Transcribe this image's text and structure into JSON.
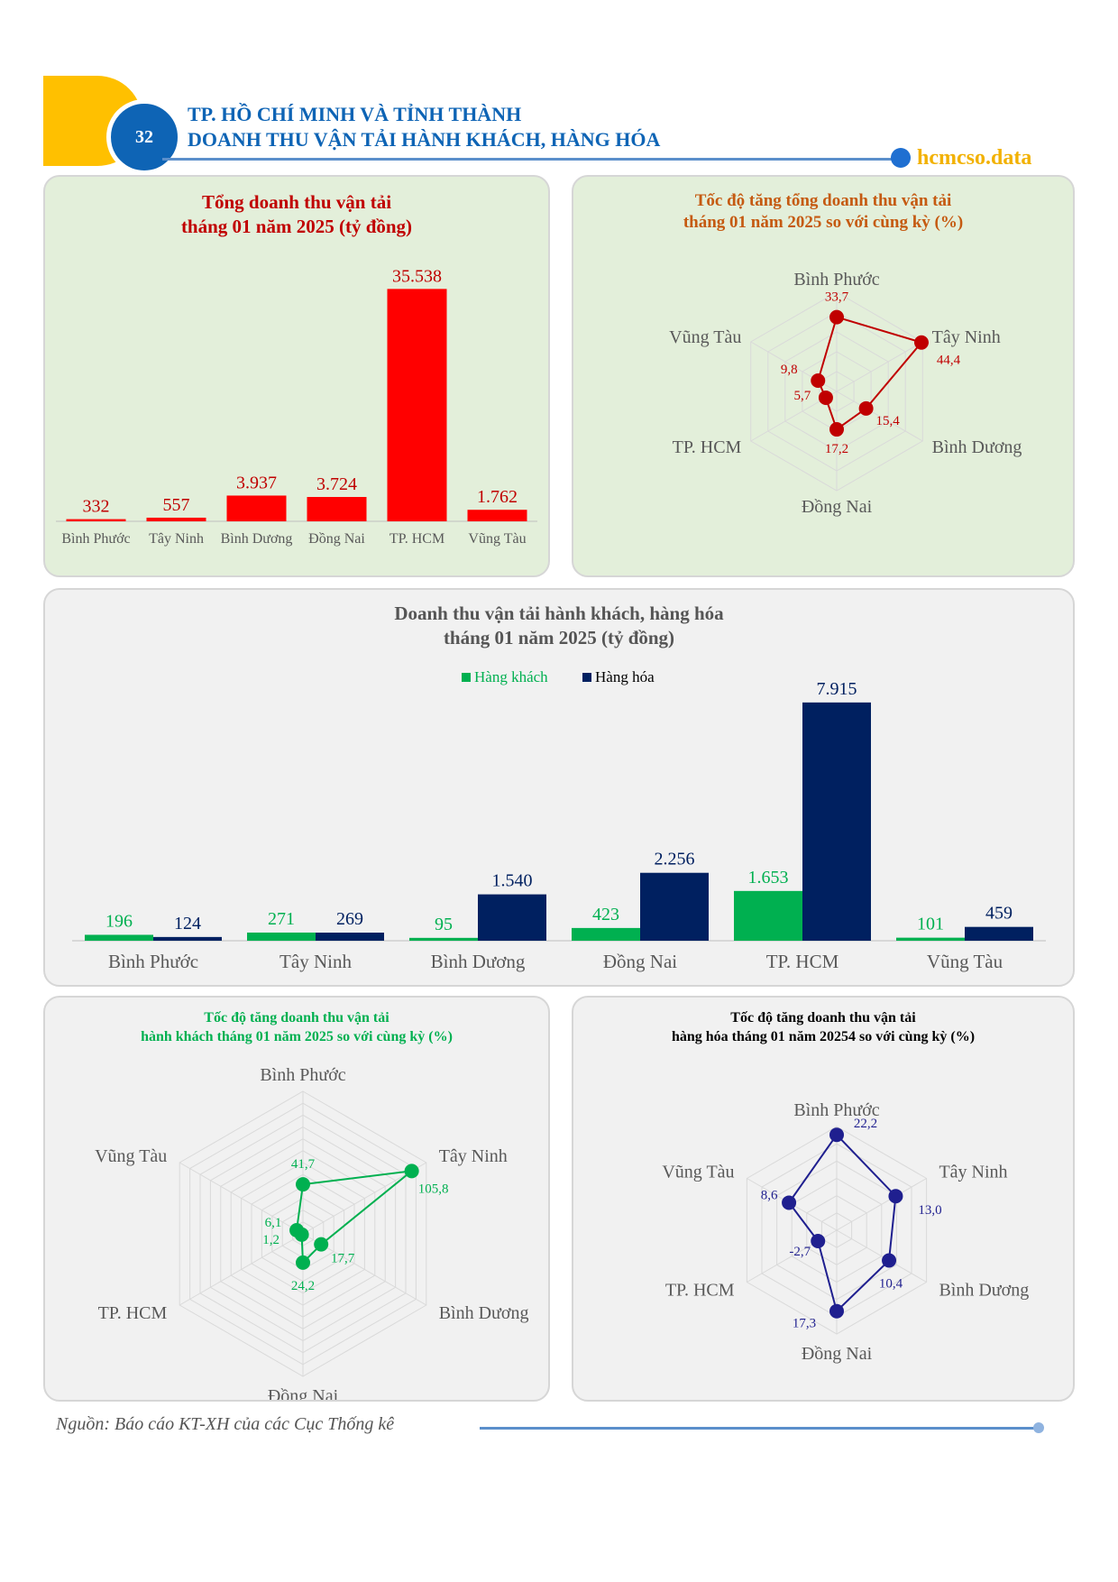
{
  "header": {
    "page_number": "32",
    "title_line1": "TP. HỒ CHÍ MINH VÀ TỈNH THÀNH",
    "title_line2": "DOANH THU VẬN TẢI HÀNH KHÁCH, HÀNG HÓA",
    "brand": "hcmcso.data"
  },
  "colors": {
    "red": "#FF0000",
    "dark_red": "#C00000",
    "green": "#00B050",
    "navy": "#002060",
    "blue_navy": "#1F1F8F",
    "header_blue": "#0E64B5",
    "yellow": "#FFC000"
  },
  "chart_data": [
    {
      "type": "bar",
      "title_line1": "Tổng doanh thu vận tải",
      "title_line2": "tháng 01 năm 2025 (tỷ đồng)",
      "categories": [
        "Bình Phước",
        "Tây Ninh",
        "Bình Dương",
        "Đồng Nai",
        "TP. HCM",
        "Vũng Tàu"
      ],
      "values": [
        332,
        557,
        3937,
        3724,
        35538,
        1762
      ],
      "value_labels": [
        "332",
        "557",
        "3.937",
        "3.724",
        "35.538",
        "1.762"
      ],
      "ylim": [
        0,
        40000
      ],
      "grid": false
    },
    {
      "type": "radar",
      "title_line1": "Tốc độ tăng tổng doanh thu vận tải",
      "title_line2": "tháng 01 năm 2025 so với cùng kỳ  (%)",
      "categories": [
        "Bình Phước",
        "Tây Ninh",
        "Bình Dương",
        "Đồng Nai",
        "TP. HCM",
        "Vũng Tàu"
      ],
      "values": [
        33.7,
        44.4,
        15.4,
        17.2,
        5.7,
        9.8
      ],
      "value_labels": [
        "33,7",
        "44,4",
        "15,4",
        "17,2",
        "5,7",
        "9,8"
      ],
      "rmax": 45
    },
    {
      "type": "bar",
      "title_line1": "Doanh thu vận tải hành khách, hàng hóa",
      "title_line2": "tháng 01 năm 2025 (tỷ đồng)",
      "legend_position": "top",
      "categories": [
        "Bình Phước",
        "Tây Ninh",
        "Bình Dương",
        "Đồng Nai",
        "TP. HCM",
        "Vũng Tàu"
      ],
      "series": [
        {
          "name": "Hàng khách",
          "values": [
            196,
            271,
            95,
            423,
            1653,
            101
          ],
          "value_labels": [
            "196",
            "271",
            "95",
            "423",
            "1.653",
            "101"
          ]
        },
        {
          "name": "Hàng hóa",
          "values": [
            124,
            269,
            1540,
            2256,
            7915,
            459
          ],
          "value_labels": [
            "124",
            "269",
            "1.540",
            "2.256",
            "7.915",
            "459"
          ]
        }
      ],
      "ylim": [
        0,
        8000
      ],
      "grid": false
    },
    {
      "type": "radar",
      "title_line1": "Tốc độ tăng doanh thu vận tải",
      "title_line2": "hành khách tháng 01 năm 2025 so với cùng kỳ  (%)",
      "categories": [
        "Bình Phước",
        "Tây Ninh",
        "Bình Dương",
        "Đồng Nai",
        "TP. HCM",
        "Vũng Tàu"
      ],
      "values": [
        41.7,
        105.8,
        17.7,
        24.2,
        1.2,
        6.1
      ],
      "value_labels": [
        "41,7",
        "105,8",
        "17,7",
        "24,2",
        "1,2",
        "6,1"
      ],
      "rmax": 120
    },
    {
      "type": "radar",
      "title_line1": "Tốc độ tăng doanh thu vận tải",
      "title_line2": "hàng hóa tháng 01 năm 20254 so với cùng kỳ (%)",
      "categories": [
        "Bình Phước",
        "Tây Ninh",
        "Bình Dương",
        "Đồng Nai",
        "TP. HCM",
        "Vũng Tàu"
      ],
      "values": [
        22.2,
        13.0,
        10.4,
        17.3,
        -2.7,
        8.6
      ],
      "value_labels": [
        "22,2",
        "13,0",
        "10,4",
        "17,3",
        "-2,7",
        "8,6"
      ],
      "rmin": -10,
      "rmax": 25
    }
  ],
  "footer": {
    "source": "Nguồn: Báo cáo KT-XH của các Cục Thống kê"
  }
}
